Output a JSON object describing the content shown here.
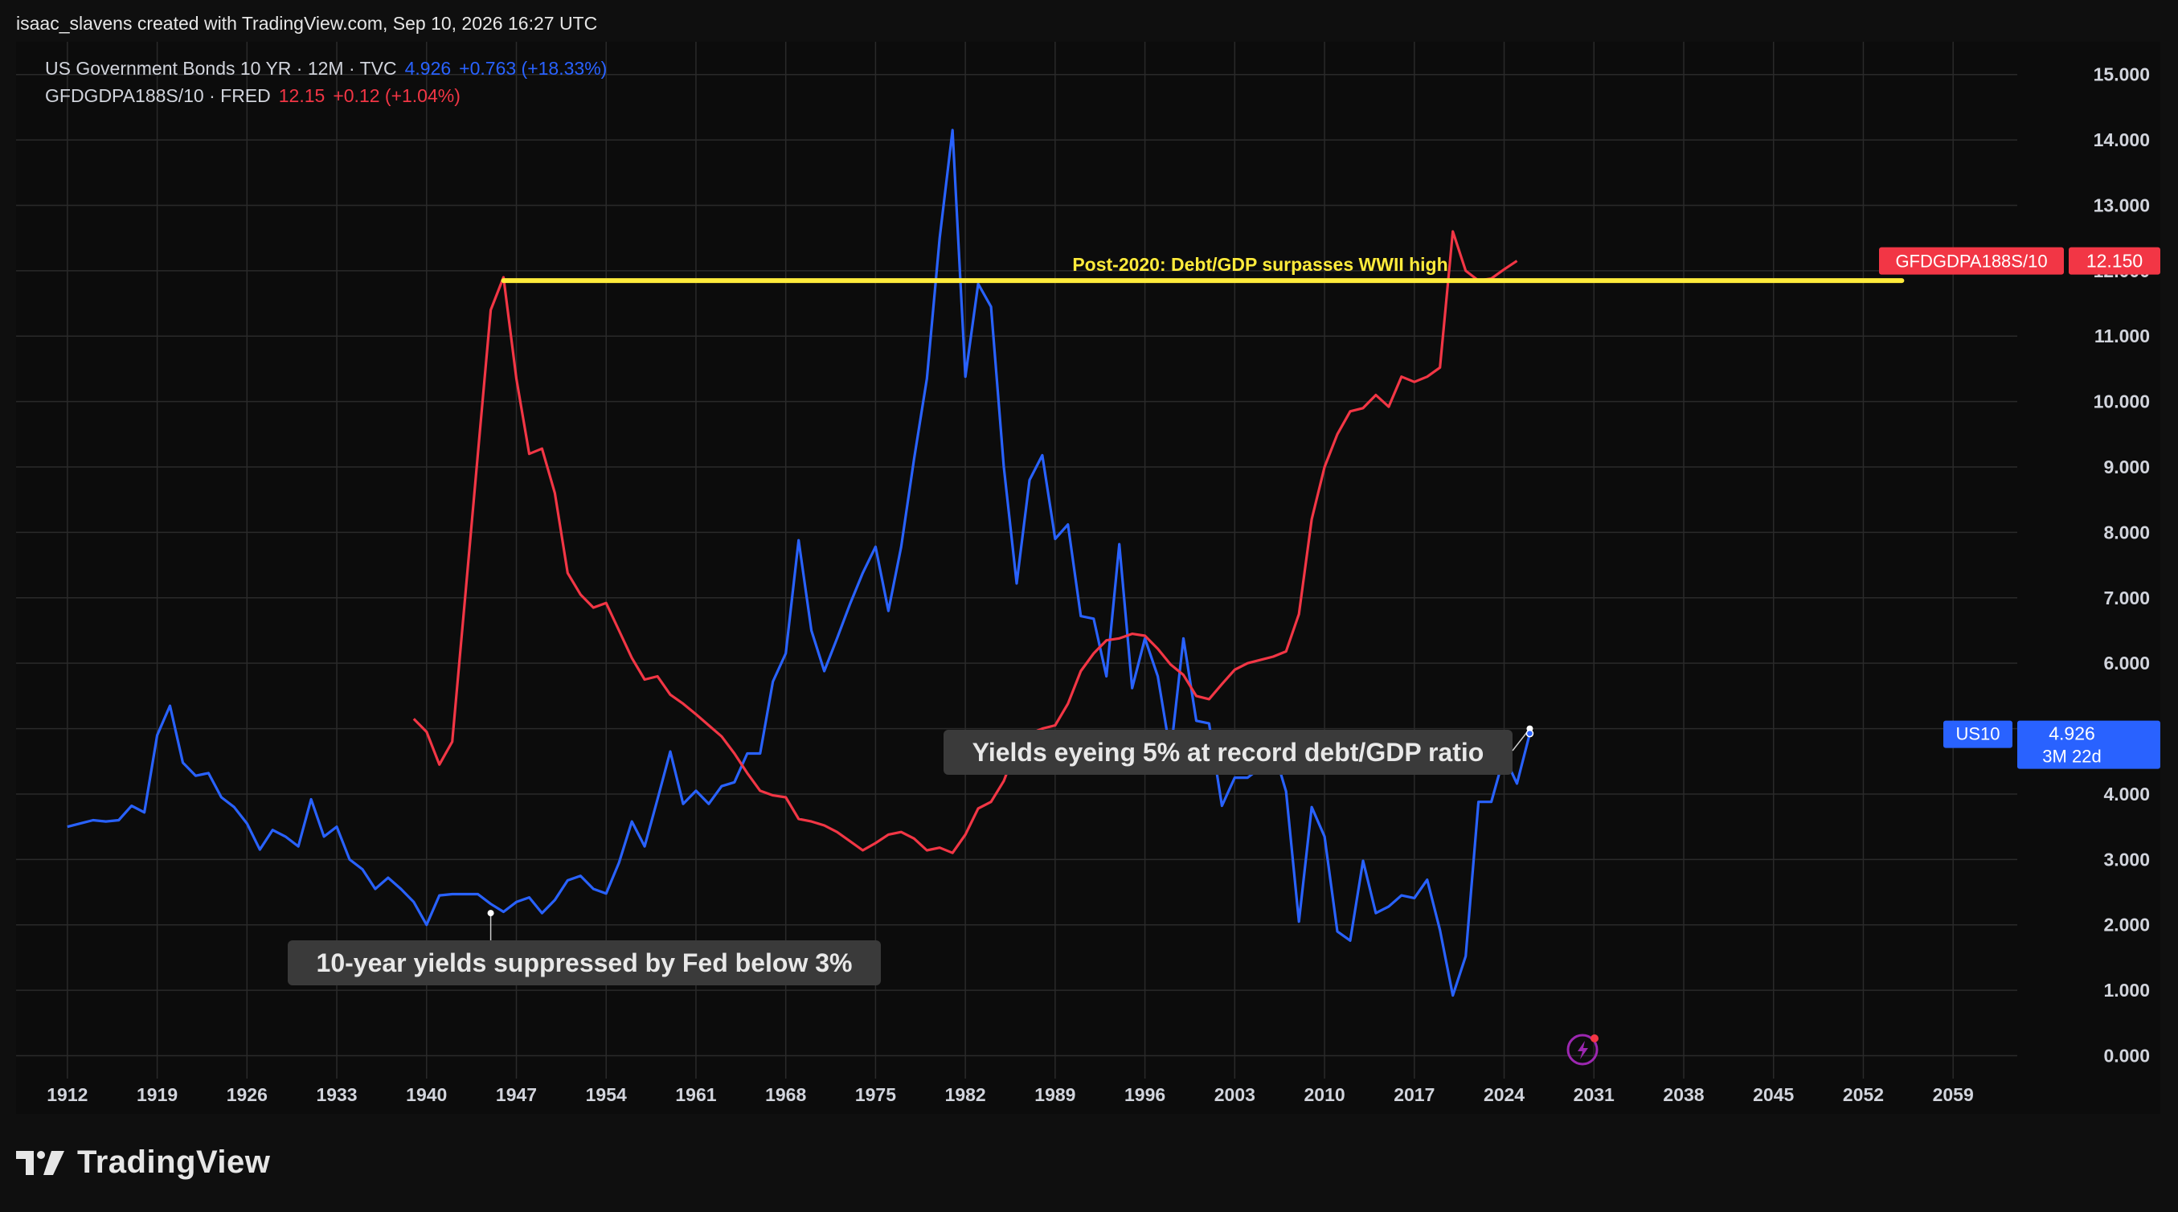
{
  "header": {
    "caption": "isaac_slavens created with TradingView.com, Sep 10, 2026 16:27 UTC"
  },
  "legend": [
    {
      "name": "US Government Bonds 10 YR · 12M · TVC",
      "value": "4.926",
      "change": "+0.763 (+18.33%)",
      "color": "#2962ff"
    },
    {
      "name": "GFDGDPA188S/10 · FRED",
      "value": "12.15",
      "change": "+0.12 (+1.04%)",
      "color": "#f23645"
    }
  ],
  "brand": {
    "name": "TradingView",
    "icon": "tradingview-logo-icon"
  },
  "chart_data": {
    "type": "line",
    "xlim": [
      1908,
      2064
    ],
    "ylim": [
      -0.35,
      15.5
    ],
    "x_ticks": [
      "1912",
      "1919",
      "1926",
      "1933",
      "1940",
      "1947",
      "1954",
      "1961",
      "1968",
      "1975",
      "1982",
      "1989",
      "1996",
      "2003",
      "2010",
      "2017",
      "2024",
      "2031",
      "2038",
      "2045",
      "2052",
      "2059"
    ],
    "y_ticks": [
      "0.000",
      "1.000",
      "2.000",
      "3.000",
      "4.000",
      "5.000",
      "6.000",
      "7.000",
      "8.000",
      "9.000",
      "10.000",
      "11.000",
      "12.000",
      "13.000",
      "14.000",
      "15.000"
    ],
    "series": [
      {
        "name": "US10",
        "color": "#2962ff",
        "points": [
          [
            1912,
            3.5
          ],
          [
            1913,
            3.55
          ],
          [
            1914,
            3.6
          ],
          [
            1915,
            3.58
          ],
          [
            1916,
            3.6
          ],
          [
            1917,
            3.82
          ],
          [
            1918,
            3.72
          ],
          [
            1919,
            4.9
          ],
          [
            1920,
            5.35
          ],
          [
            1921,
            4.48
          ],
          [
            1922,
            4.28
          ],
          [
            1923,
            4.32
          ],
          [
            1924,
            3.95
          ],
          [
            1925,
            3.8
          ],
          [
            1926,
            3.55
          ],
          [
            1927,
            3.15
          ],
          [
            1928,
            3.45
          ],
          [
            1929,
            3.35
          ],
          [
            1930,
            3.2
          ],
          [
            1931,
            3.92
          ],
          [
            1932,
            3.35
          ],
          [
            1933,
            3.5
          ],
          [
            1934,
            3.0
          ],
          [
            1935,
            2.85
          ],
          [
            1936,
            2.55
          ],
          [
            1937,
            2.72
          ],
          [
            1938,
            2.55
          ],
          [
            1939,
            2.35
          ],
          [
            1940,
            2.0
          ],
          [
            1941,
            2.45
          ],
          [
            1942,
            2.47
          ],
          [
            1943,
            2.47
          ],
          [
            1944,
            2.47
          ],
          [
            1945,
            2.32
          ],
          [
            1946,
            2.2
          ],
          [
            1947,
            2.35
          ],
          [
            1948,
            2.42
          ],
          [
            1949,
            2.18
          ],
          [
            1950,
            2.38
          ],
          [
            1951,
            2.68
          ],
          [
            1952,
            2.75
          ],
          [
            1953,
            2.55
          ],
          [
            1954,
            2.48
          ],
          [
            1955,
            2.95
          ],
          [
            1956,
            3.58
          ],
          [
            1957,
            3.2
          ],
          [
            1958,
            3.92
          ],
          [
            1959,
            4.65
          ],
          [
            1960,
            3.85
          ],
          [
            1961,
            4.05
          ],
          [
            1962,
            3.85
          ],
          [
            1963,
            4.12
          ],
          [
            1964,
            4.18
          ],
          [
            1965,
            4.62
          ],
          [
            1966,
            4.62
          ],
          [
            1967,
            5.72
          ],
          [
            1968,
            6.15
          ],
          [
            1969,
            7.88
          ],
          [
            1970,
            6.5
          ],
          [
            1971,
            5.88
          ],
          [
            1972,
            6.38
          ],
          [
            1973,
            6.9
          ],
          [
            1974,
            7.38
          ],
          [
            1975,
            7.78
          ],
          [
            1976,
            6.8
          ],
          [
            1977,
            7.78
          ],
          [
            1978,
            9.12
          ],
          [
            1979,
            10.35
          ],
          [
            1980,
            12.5
          ],
          [
            1981,
            14.15
          ],
          [
            1982,
            10.38
          ],
          [
            1983,
            11.8
          ],
          [
            1984,
            11.45
          ],
          [
            1985,
            9.0
          ],
          [
            1986,
            7.22
          ],
          [
            1987,
            8.8
          ],
          [
            1988,
            9.18
          ],
          [
            1989,
            7.9
          ],
          [
            1990,
            8.12
          ],
          [
            1991,
            6.72
          ],
          [
            1992,
            6.68
          ],
          [
            1993,
            5.8
          ],
          [
            1994,
            7.82
          ],
          [
            1995,
            5.62
          ],
          [
            1996,
            6.38
          ],
          [
            1997,
            5.8
          ],
          [
            1998,
            4.62
          ],
          [
            1999,
            6.38
          ],
          [
            2000,
            5.12
          ],
          [
            2001,
            5.08
          ],
          [
            2002,
            3.82
          ],
          [
            2003,
            4.25
          ],
          [
            2004,
            4.25
          ],
          [
            2005,
            4.4
          ],
          [
            2006,
            4.7
          ],
          [
            2007,
            4.04
          ],
          [
            2008,
            2.05
          ],
          [
            2009,
            3.8
          ],
          [
            2010,
            3.35
          ],
          [
            2011,
            1.9
          ],
          [
            2012,
            1.76
          ],
          [
            2013,
            2.98
          ],
          [
            2014,
            2.18
          ],
          [
            2015,
            2.28
          ],
          [
            2016,
            2.45
          ],
          [
            2017,
            2.41
          ],
          [
            2018,
            2.69
          ],
          [
            2019,
            1.92
          ],
          [
            2020,
            0.92
          ],
          [
            2021,
            1.52
          ],
          [
            2022,
            3.88
          ],
          [
            2023,
            3.88
          ],
          [
            2024,
            4.58
          ],
          [
            2025,
            4.16
          ],
          [
            2026,
            4.926
          ]
        ]
      },
      {
        "name": "GFDGDPA188S/10",
        "color": "#f23645",
        "points": [
          [
            1939,
            5.15
          ],
          [
            1940,
            4.95
          ],
          [
            1941,
            4.45
          ],
          [
            1942,
            4.8
          ],
          [
            1943,
            7.0
          ],
          [
            1944,
            9.2
          ],
          [
            1945,
            11.4
          ],
          [
            1946,
            11.9
          ],
          [
            1947,
            10.35
          ],
          [
            1948,
            9.2
          ],
          [
            1949,
            9.28
          ],
          [
            1950,
            8.6
          ],
          [
            1951,
            7.38
          ],
          [
            1952,
            7.05
          ],
          [
            1953,
            6.85
          ],
          [
            1954,
            6.92
          ],
          [
            1955,
            6.5
          ],
          [
            1956,
            6.08
          ],
          [
            1957,
            5.75
          ],
          [
            1958,
            5.8
          ],
          [
            1959,
            5.52
          ],
          [
            1960,
            5.38
          ],
          [
            1961,
            5.22
          ],
          [
            1962,
            5.05
          ],
          [
            1963,
            4.88
          ],
          [
            1964,
            4.62
          ],
          [
            1965,
            4.32
          ],
          [
            1966,
            4.05
          ],
          [
            1967,
            3.98
          ],
          [
            1968,
            3.95
          ],
          [
            1969,
            3.62
          ],
          [
            1970,
            3.58
          ],
          [
            1971,
            3.52
          ],
          [
            1972,
            3.42
          ],
          [
            1973,
            3.28
          ],
          [
            1974,
            3.14
          ],
          [
            1975,
            3.25
          ],
          [
            1976,
            3.38
          ],
          [
            1977,
            3.42
          ],
          [
            1978,
            3.32
          ],
          [
            1979,
            3.14
          ],
          [
            1980,
            3.18
          ],
          [
            1981,
            3.1
          ],
          [
            1982,
            3.38
          ],
          [
            1983,
            3.78
          ],
          [
            1984,
            3.88
          ],
          [
            1985,
            4.2
          ],
          [
            1986,
            4.72
          ],
          [
            1987,
            4.92
          ],
          [
            1988,
            5.0
          ],
          [
            1989,
            5.05
          ],
          [
            1990,
            5.38
          ],
          [
            1991,
            5.88
          ],
          [
            1992,
            6.15
          ],
          [
            1993,
            6.35
          ],
          [
            1994,
            6.38
          ],
          [
            1995,
            6.45
          ],
          [
            1996,
            6.42
          ],
          [
            1997,
            6.22
          ],
          [
            1998,
            5.98
          ],
          [
            1999,
            5.82
          ],
          [
            2000,
            5.5
          ],
          [
            2001,
            5.45
          ],
          [
            2002,
            5.68
          ],
          [
            2003,
            5.9
          ],
          [
            2004,
            6.0
          ],
          [
            2005,
            6.05
          ],
          [
            2006,
            6.1
          ],
          [
            2007,
            6.18
          ],
          [
            2008,
            6.75
          ],
          [
            2009,
            8.2
          ],
          [
            2010,
            9.0
          ],
          [
            2011,
            9.5
          ],
          [
            2012,
            9.85
          ],
          [
            2013,
            9.9
          ],
          [
            2014,
            10.1
          ],
          [
            2015,
            9.92
          ],
          [
            2016,
            10.38
          ],
          [
            2017,
            10.3
          ],
          [
            2018,
            10.38
          ],
          [
            2019,
            10.52
          ],
          [
            2020,
            12.6
          ],
          [
            2021,
            12.0
          ],
          [
            2022,
            11.85
          ],
          [
            2023,
            11.88
          ],
          [
            2024,
            12.02
          ],
          [
            2025,
            12.15
          ]
        ]
      }
    ],
    "annotations": [
      {
        "text": "Post-2020: Debt/GDP surpasses WWII high",
        "type": "hline",
        "y": 11.85,
        "x_start": 1946,
        "x_end": 2055,
        "color": "#ffeb3b"
      },
      {
        "text": "10-year yields suppressed by Fed below 3%",
        "type": "callout",
        "x": 1945,
        "y": 2.18
      },
      {
        "text": "Yields eyeing 5% at record debt/GDP ratio",
        "type": "callout",
        "x": 2026,
        "y": 5.0
      }
    ],
    "price_labels": [
      {
        "series": "GFDGDPA188S/10",
        "name": "GFDGDPA188S/10",
        "value": "12.150",
        "y": 12.15,
        "color": "#f23645"
      },
      {
        "series": "US10",
        "name": "US10",
        "value": "4.926",
        "sub": "3M 22d",
        "y": 4.926,
        "color": "#2962ff"
      }
    ]
  }
}
